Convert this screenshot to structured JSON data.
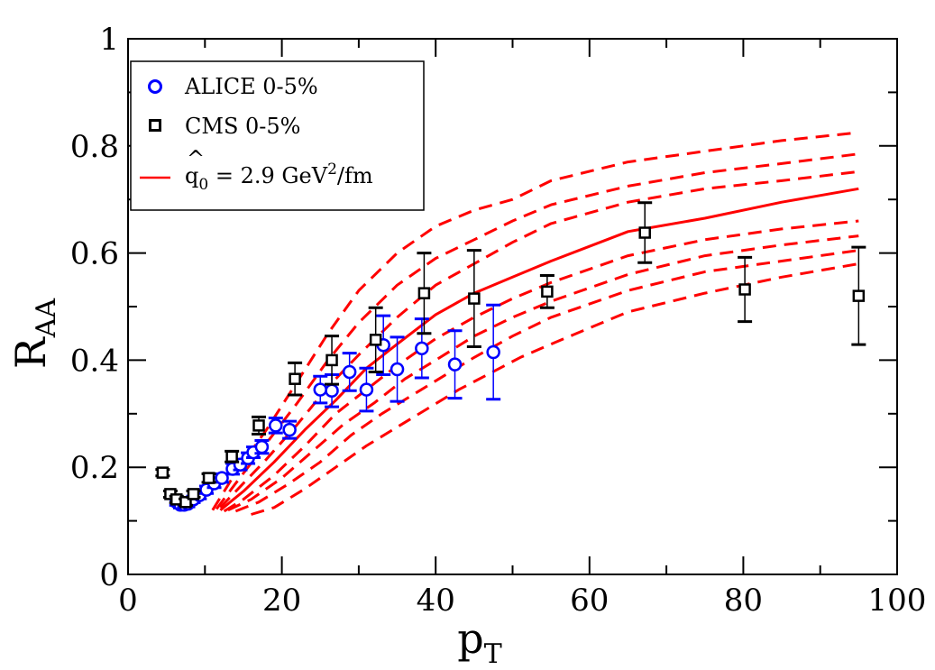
{
  "chart_data": {
    "type": "scatter",
    "title": "",
    "xlabel": {
      "main": "p",
      "sub": "T"
    },
    "ylabel": {
      "main": "R",
      "sub": "AA"
    },
    "xlim": [
      0,
      100
    ],
    "ylim": [
      0,
      1
    ],
    "x_ticks": [
      0,
      20,
      40,
      60,
      80,
      100
    ],
    "x_tick_labels": [
      "0",
      "20",
      "40",
      "60",
      "80",
      "100"
    ],
    "y_ticks": [
      0,
      0.2,
      0.4,
      0.6,
      0.8,
      1
    ],
    "y_tick_labels": [
      "0",
      "0.2",
      "0.4",
      "0.6",
      "0.8",
      "1"
    ],
    "grid": false,
    "legend": {
      "position": "top-left",
      "entries": [
        {
          "series": "alice",
          "label": "ALICE 0-5%"
        },
        {
          "series": "cms",
          "label": "CMS 0-5%"
        },
        {
          "series": "theory",
          "label_prefix": "q",
          "label_hat": "^",
          "label_sub": "0",
          "label_mid": " = 2.9 GeV",
          "label_sup": "2",
          "label_suffix": "/fm"
        }
      ]
    },
    "series": [
      {
        "id": "alice",
        "name": "ALICE 0-5%",
        "marker": "circle",
        "color": "#0000ff",
        "points": [
          {
            "x": 6.3,
            "y": 0.135,
            "err": 0.006
          },
          {
            "x": 6.8,
            "y": 0.13,
            "err": 0.006
          },
          {
            "x": 7.3,
            "y": 0.13,
            "err": 0.006
          },
          {
            "x": 7.8,
            "y": 0.132,
            "err": 0.006
          },
          {
            "x": 8.5,
            "y": 0.14,
            "err": 0.006
          },
          {
            "x": 9.3,
            "y": 0.148,
            "err": 0.007
          },
          {
            "x": 10.2,
            "y": 0.158,
            "err": 0.007
          },
          {
            "x": 11.2,
            "y": 0.17,
            "err": 0.008
          },
          {
            "x": 12.2,
            "y": 0.18,
            "err": 0.008
          },
          {
            "x": 13.6,
            "y": 0.197,
            "err": 0.01
          },
          {
            "x": 14.6,
            "y": 0.205,
            "err": 0.01
          },
          {
            "x": 15.6,
            "y": 0.217,
            "err": 0.01
          },
          {
            "x": 16.3,
            "y": 0.228,
            "err": 0.01
          },
          {
            "x": 17.4,
            "y": 0.238,
            "err": 0.012
          },
          {
            "x": 19.2,
            "y": 0.278,
            "err": 0.014
          },
          {
            "x": 21.0,
            "y": 0.27,
            "err": 0.016
          },
          {
            "x": 25.0,
            "y": 0.345,
            "err": 0.025
          },
          {
            "x": 26.5,
            "y": 0.343,
            "err": 0.03
          },
          {
            "x": 28.8,
            "y": 0.378,
            "err": 0.035
          },
          {
            "x": 31.0,
            "y": 0.345,
            "err": 0.04
          },
          {
            "x": 33.2,
            "y": 0.428,
            "err": 0.055
          },
          {
            "x": 35.0,
            "y": 0.383,
            "err": 0.06
          },
          {
            "x": 38.2,
            "y": 0.422,
            "err": 0.055
          },
          {
            "x": 42.5,
            "y": 0.392,
            "err": 0.063
          },
          {
            "x": 47.5,
            "y": 0.415,
            "err": 0.088
          }
        ]
      },
      {
        "id": "cms",
        "name": "CMS 0-5%",
        "marker": "square",
        "color": "#000000",
        "points": [
          {
            "x": 4.5,
            "y": 0.19,
            "err": 0.006
          },
          {
            "x": 5.5,
            "y": 0.15,
            "err": 0.006
          },
          {
            "x": 6.3,
            "y": 0.14,
            "err": 0.006
          },
          {
            "x": 7.5,
            "y": 0.135,
            "err": 0.006
          },
          {
            "x": 8.5,
            "y": 0.15,
            "err": 0.006
          },
          {
            "x": 10.5,
            "y": 0.18,
            "err": 0.008
          },
          {
            "x": 13.5,
            "y": 0.22,
            "err": 0.01
          },
          {
            "x": 17.0,
            "y": 0.278,
            "err": 0.016
          },
          {
            "x": 21.7,
            "y": 0.365,
            "err": 0.03
          },
          {
            "x": 26.5,
            "y": 0.4,
            "err": 0.045
          },
          {
            "x": 32.2,
            "y": 0.438,
            "err": 0.06
          },
          {
            "x": 38.5,
            "y": 0.525,
            "err": 0.075
          },
          {
            "x": 45.0,
            "y": 0.515,
            "err": 0.09
          },
          {
            "x": 54.5,
            "y": 0.528,
            "err": 0.03
          },
          {
            "x": 67.2,
            "y": 0.638,
            "err": 0.056
          },
          {
            "x": 80.2,
            "y": 0.532,
            "err": 0.06
          },
          {
            "x": 95.0,
            "y": 0.52,
            "err": 0.091
          }
        ]
      }
    ],
    "curves": [
      {
        "id": "theory-dash-1",
        "style": "dashed",
        "color": "#ff0000",
        "points": [
          [
            11,
            0.12
          ],
          [
            14,
            0.19
          ],
          [
            18,
            0.27
          ],
          [
            22,
            0.36
          ],
          [
            26,
            0.45
          ],
          [
            30,
            0.53
          ],
          [
            35,
            0.6
          ],
          [
            40,
            0.65
          ],
          [
            45,
            0.68
          ],
          [
            50,
            0.7
          ],
          [
            55,
            0.735
          ],
          [
            65,
            0.77
          ],
          [
            75,
            0.79
          ],
          [
            85,
            0.81
          ],
          [
            95,
            0.825
          ]
        ]
      },
      {
        "id": "theory-dash-2",
        "style": "dashed",
        "color": "#ff0000",
        "points": [
          [
            11.5,
            0.122
          ],
          [
            14,
            0.17
          ],
          [
            18,
            0.245
          ],
          [
            22,
            0.32
          ],
          [
            26,
            0.4
          ],
          [
            30,
            0.47
          ],
          [
            35,
            0.54
          ],
          [
            40,
            0.59
          ],
          [
            45,
            0.625
          ],
          [
            50,
            0.66
          ],
          [
            55,
            0.69
          ],
          [
            65,
            0.725
          ],
          [
            75,
            0.75
          ],
          [
            85,
            0.767
          ],
          [
            95,
            0.785
          ]
        ]
      },
      {
        "id": "theory-dash-3",
        "style": "dashed",
        "color": "#ff0000",
        "points": [
          [
            12,
            0.125
          ],
          [
            15,
            0.17
          ],
          [
            18,
            0.215
          ],
          [
            22,
            0.28
          ],
          [
            26,
            0.35
          ],
          [
            30,
            0.41
          ],
          [
            35,
            0.48
          ],
          [
            40,
            0.54
          ],
          [
            45,
            0.58
          ],
          [
            50,
            0.62
          ],
          [
            55,
            0.655
          ],
          [
            65,
            0.695
          ],
          [
            75,
            0.72
          ],
          [
            85,
            0.735
          ],
          [
            95,
            0.752
          ]
        ]
      },
      {
        "id": "theory-solid",
        "style": "solid",
        "color": "#ff0000",
        "points": [
          [
            12,
            0.12
          ],
          [
            15,
            0.155
          ],
          [
            19,
            0.21
          ],
          [
            23,
            0.27
          ],
          [
            27,
            0.325
          ],
          [
            31,
            0.385
          ],
          [
            35,
            0.43
          ],
          [
            40,
            0.485
          ],
          [
            45,
            0.525
          ],
          [
            50,
            0.555
          ],
          [
            55,
            0.585
          ],
          [
            65,
            0.64
          ],
          [
            75,
            0.665
          ],
          [
            85,
            0.695
          ],
          [
            95,
            0.72
          ]
        ]
      },
      {
        "id": "theory-dash-4",
        "style": "dashed",
        "color": "#ff0000",
        "points": [
          [
            12.5,
            0.118
          ],
          [
            15,
            0.14
          ],
          [
            19,
            0.185
          ],
          [
            23,
            0.24
          ],
          [
            27,
            0.3
          ],
          [
            31,
            0.345
          ],
          [
            35,
            0.39
          ],
          [
            40,
            0.44
          ],
          [
            45,
            0.48
          ],
          [
            50,
            0.515
          ],
          [
            55,
            0.545
          ],
          [
            65,
            0.595
          ],
          [
            75,
            0.625
          ],
          [
            85,
            0.645
          ],
          [
            95,
            0.66
          ]
        ]
      },
      {
        "id": "theory-dash-5",
        "style": "dashed",
        "color": "#ff0000",
        "points": [
          [
            13,
            0.12
          ],
          [
            16,
            0.14
          ],
          [
            20,
            0.18
          ],
          [
            24,
            0.23
          ],
          [
            28,
            0.28
          ],
          [
            32,
            0.32
          ],
          [
            36,
            0.365
          ],
          [
            40,
            0.4
          ],
          [
            45,
            0.445
          ],
          [
            50,
            0.48
          ],
          [
            55,
            0.51
          ],
          [
            65,
            0.56
          ],
          [
            75,
            0.595
          ],
          [
            85,
            0.615
          ],
          [
            95,
            0.632
          ]
        ]
      },
      {
        "id": "theory-dash-6",
        "style": "dashed",
        "color": "#ff0000",
        "points": [
          [
            14,
            0.118
          ],
          [
            17,
            0.135
          ],
          [
            21,
            0.17
          ],
          [
            25,
            0.21
          ],
          [
            29,
            0.26
          ],
          [
            33,
            0.3
          ],
          [
            37,
            0.335
          ],
          [
            41,
            0.37
          ],
          [
            45,
            0.405
          ],
          [
            50,
            0.445
          ],
          [
            55,
            0.48
          ],
          [
            65,
            0.53
          ],
          [
            75,
            0.565
          ],
          [
            85,
            0.585
          ],
          [
            95,
            0.605
          ]
        ]
      },
      {
        "id": "theory-dash-7",
        "style": "dashed",
        "color": "#ff0000",
        "points": [
          [
            16,
            0.112
          ],
          [
            19,
            0.125
          ],
          [
            23,
            0.16
          ],
          [
            27,
            0.2
          ],
          [
            31,
            0.24
          ],
          [
            35,
            0.275
          ],
          [
            39,
            0.31
          ],
          [
            43,
            0.345
          ],
          [
            47,
            0.375
          ],
          [
            51,
            0.405
          ],
          [
            55,
            0.43
          ],
          [
            65,
            0.49
          ],
          [
            75,
            0.525
          ],
          [
            85,
            0.555
          ],
          [
            95,
            0.58
          ]
        ]
      }
    ]
  }
}
